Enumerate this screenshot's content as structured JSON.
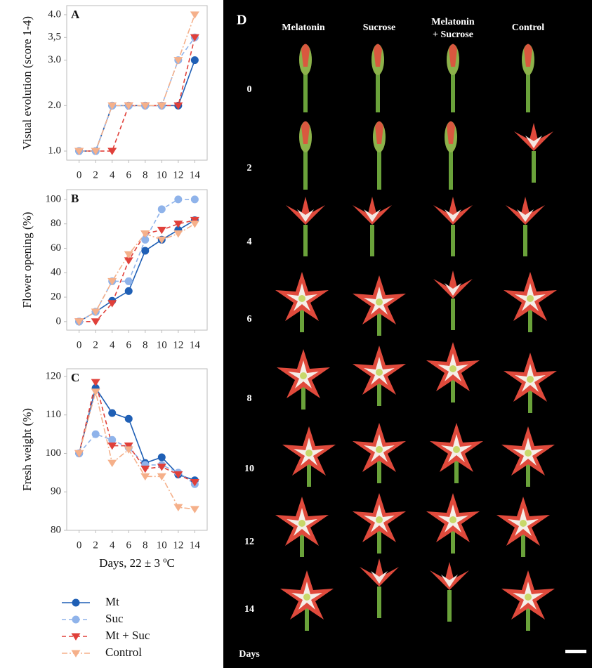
{
  "chart_data": [
    {
      "type": "line",
      "panel": "A",
      "ylabel": "Visual evolution (score 1-4)",
      "x": [
        0,
        2,
        4,
        6,
        8,
        10,
        12,
        14
      ],
      "xlim": [
        -1.5,
        15.5
      ],
      "xticks": [
        0,
        2,
        4,
        6,
        8,
        10,
        12,
        14
      ],
      "ylim": [
        0.8,
        4.2
      ],
      "yticks": [
        {
          "value": 1,
          "label": "1.0"
        },
        {
          "value": 2,
          "label": "2.0"
        },
        {
          "value": 3,
          "label": "3.0"
        },
        {
          "value": 3.5,
          "label": "3,5"
        },
        {
          "value": 4,
          "label": "4.0"
        }
      ],
      "series": [
        {
          "name": "Mt",
          "color": "#1f5fb5",
          "marker": "circle",
          "linestyle": "solid",
          "values": [
            1,
            1,
            2,
            2,
            2,
            2,
            2,
            3
          ]
        },
        {
          "name": "Suc",
          "color": "#8fb3ea",
          "marker": "circle",
          "linestyle": "dashed",
          "values": [
            1,
            1,
            2,
            2,
            2,
            2,
            3,
            3.5
          ]
        },
        {
          "name": "Mt + Suc",
          "color": "#e0403a",
          "marker": "triangle-down",
          "linestyle": "dashed",
          "values": [
            1,
            1,
            1,
            2,
            2,
            2,
            2,
            3.5
          ]
        },
        {
          "name": "Control",
          "color": "#f5b08a",
          "marker": "triangle-down",
          "linestyle": "dashdot",
          "values": [
            1,
            1,
            2,
            2,
            2,
            2,
            3,
            4
          ]
        }
      ]
    },
    {
      "type": "line",
      "panel": "B",
      "ylabel": "Flower opening (%)",
      "x": [
        0,
        2,
        4,
        6,
        8,
        10,
        12,
        14
      ],
      "xlim": [
        -1.5,
        15.5
      ],
      "xticks": [
        0,
        2,
        4,
        6,
        8,
        10,
        12,
        14
      ],
      "ylim": [
        -7,
        108
      ],
      "yticks": [
        0,
        20,
        40,
        60,
        80,
        100
      ],
      "series": [
        {
          "color": "#1f5fb5",
          "marker": "circle",
          "linestyle": "solid",
          "values": [
            0,
            8,
            17,
            25,
            58,
            67,
            75,
            83
          ]
        },
        {
          "color": "#8fb3ea",
          "marker": "circle",
          "linestyle": "dashed",
          "values": [
            0,
            8,
            33,
            33,
            67,
            92,
            100,
            100
          ]
        },
        {
          "color": "#e0403a",
          "marker": "triangle-down",
          "linestyle": "dashed",
          "values": [
            0,
            0,
            15,
            50,
            72,
            75,
            80,
            83
          ]
        },
        {
          "color": "#f5b08a",
          "marker": "triangle-down",
          "linestyle": "dashdot",
          "values": [
            0,
            8,
            33,
            55,
            72,
            67,
            72,
            80
          ]
        }
      ]
    },
    {
      "type": "line",
      "panel": "C",
      "ylabel": "Fresh weight (%)",
      "xlabel": "Days, 22 ± 3 ºC",
      "x": [
        0,
        2,
        4,
        6,
        8,
        10,
        12,
        14
      ],
      "xlim": [
        -1.5,
        15.5
      ],
      "xticks": [
        0,
        2,
        4,
        6,
        8,
        10,
        12,
        14
      ],
      "ylim": [
        80,
        122
      ],
      "yticks": [
        80,
        90,
        100,
        110,
        120
      ],
      "series": [
        {
          "color": "#1f5fb5",
          "marker": "circle",
          "linestyle": "solid",
          "values": [
            100,
            117,
            110.5,
            109,
            97.5,
            99,
            94.5,
            93
          ]
        },
        {
          "color": "#8fb3ea",
          "marker": "circle",
          "linestyle": "dashed",
          "values": [
            100,
            105,
            103.5,
            101.5,
            97,
            97,
            95,
            92
          ]
        },
        {
          "color": "#e0403a",
          "marker": "triangle-down",
          "linestyle": "dashed",
          "values": [
            100,
            118.5,
            102,
            102,
            96,
            96.5,
            94.5,
            92.5
          ]
        },
        {
          "color": "#f5b08a",
          "marker": "triangle-down",
          "linestyle": "dashdot",
          "values": [
            100,
            116,
            97.5,
            101,
            94,
            94,
            86,
            85.5
          ]
        }
      ]
    }
  ],
  "photo_panel": {
    "panel": "D",
    "columns": [
      "Melatonin",
      "Sucrose",
      "Melatonin",
      "+ Sucrose",
      "Control"
    ],
    "rows": [
      "0",
      "2",
      "4",
      "6",
      "8",
      "10",
      "12",
      "14"
    ],
    "row_axis": "Days"
  }
}
